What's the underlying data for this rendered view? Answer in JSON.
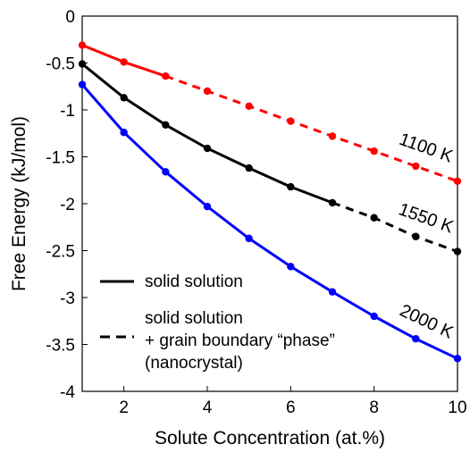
{
  "chart_data": {
    "type": "line",
    "title": "",
    "xlabel": "Solute Concentration (at.%)",
    "ylabel": "Free Energy (kJ/mol)",
    "xlim": [
      1,
      10
    ],
    "ylim": [
      -4,
      0
    ],
    "x_ticks": [
      2,
      4,
      6,
      8,
      10
    ],
    "y_ticks": [
      0,
      -0.5,
      -1,
      -1.5,
      -2,
      -2.5,
      -3,
      -3.5,
      -4
    ],
    "x_tick_labels": [
      "2",
      "4",
      "6",
      "8",
      "10"
    ],
    "y_tick_labels": [
      "0",
      "-0.5",
      "-1",
      "-1.5",
      "-2",
      "-2.5",
      "-3",
      "-3.5",
      "-4"
    ],
    "grid": false,
    "series": [
      {
        "label": "1100 K",
        "color": "#ff0000",
        "x": [
          1,
          2,
          3,
          4,
          5,
          6,
          7,
          8,
          9,
          10
        ],
        "y": [
          -0.31,
          -0.49,
          -0.64,
          -0.8,
          -0.96,
          -1.12,
          -1.28,
          -1.44,
          -1.6,
          -1.76
        ],
        "solid_until_x": 3
      },
      {
        "label": "1550 K",
        "color": "#000000",
        "x": [
          1,
          2,
          3,
          4,
          5,
          6,
          7,
          8,
          9,
          10
        ],
        "y": [
          -0.51,
          -0.87,
          -1.16,
          -1.41,
          -1.62,
          -1.82,
          -1.99,
          -2.15,
          -2.35,
          -2.51
        ],
        "solid_until_x": 7
      },
      {
        "label": "2000 K",
        "color": "#0000ff",
        "x": [
          1,
          2,
          3,
          4,
          5,
          6,
          7,
          8,
          9,
          10
        ],
        "y": [
          -0.73,
          -1.24,
          -1.66,
          -2.03,
          -2.37,
          -2.67,
          -2.94,
          -3.2,
          -3.44,
          -3.65
        ],
        "solid_until_x": 10
      }
    ],
    "legend": {
      "placement": "lower-left",
      "entries": [
        {
          "style": "solid",
          "lines": [
            "solid solution"
          ]
        },
        {
          "style": "dashed",
          "lines": [
            "solid solution",
            "+ grain boundary “phase”",
            "(nanocrystal)"
          ]
        }
      ]
    }
  }
}
